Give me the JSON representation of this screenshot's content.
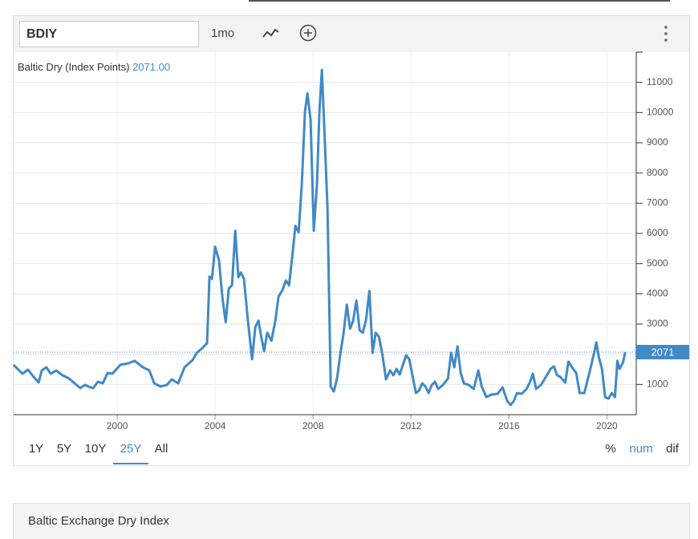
{
  "toolbar": {
    "symbol": "BDIY",
    "interval": "1mo"
  },
  "chart_data": {
    "type": "line",
    "label": "Baltic Dry (Index Points)",
    "legend_value": "2071.00",
    "color": "#4189c7",
    "x": [
      1995.77,
      1995.93,
      1996.13,
      1996.36,
      1996.59,
      1996.79,
      1996.92,
      1997.11,
      1997.28,
      1997.51,
      1997.77,
      1998.03,
      1998.3,
      1998.49,
      1998.69,
      1998.82,
      1999.02,
      1999.21,
      1999.41,
      1999.61,
      1999.8,
      2000.13,
      2000.46,
      2000.72,
      2001.05,
      2001.31,
      2001.51,
      2001.77,
      2002.03,
      2002.23,
      2002.49,
      2002.75,
      2003.08,
      2003.25,
      2003.48,
      2003.67,
      2003.77,
      2003.87,
      2004.0,
      2004.16,
      2004.3,
      2004.43,
      2004.56,
      2004.69,
      2004.82,
      2004.95,
      2005.05,
      2005.18,
      2005.34,
      2005.51,
      2005.64,
      2005.77,
      2005.87,
      2006.0,
      2006.13,
      2006.3,
      2006.46,
      2006.59,
      2006.75,
      2006.89,
      2007.02,
      2007.15,
      2007.28,
      2007.41,
      2007.54,
      2007.67,
      2007.77,
      2007.9,
      2008.03,
      2008.16,
      2008.26,
      2008.36,
      2008.46,
      2008.59,
      2008.72,
      2008.85,
      2008.98,
      2009.11,
      2009.25,
      2009.38,
      2009.51,
      2009.64,
      2009.77,
      2009.9,
      2010.03,
      2010.16,
      2010.3,
      2010.43,
      2010.56,
      2010.69,
      2010.82,
      2010.98,
      2011.15,
      2011.28,
      2011.41,
      2011.54,
      2011.67,
      2011.8,
      2011.93,
      2012.07,
      2012.2,
      2012.33,
      2012.46,
      2012.59,
      2012.72,
      2012.85,
      2012.98,
      2013.11,
      2013.31,
      2013.51,
      2013.64,
      2013.77,
      2013.9,
      2014.03,
      2014.16,
      2014.36,
      2014.56,
      2014.75,
      2014.89,
      2015.08,
      2015.28,
      2015.54,
      2015.74,
      2015.93,
      2016.07,
      2016.2,
      2016.33,
      2016.52,
      2016.72,
      2016.85,
      2016.98,
      2017.11,
      2017.31,
      2017.51,
      2017.7,
      2017.84,
      2017.97,
      2018.1,
      2018.3,
      2018.43,
      2018.62,
      2018.75,
      2018.89,
      2019.08,
      2019.28,
      2019.48,
      2019.57,
      2019.67,
      2019.8,
      2019.93,
      2020.07,
      2020.2,
      2020.33,
      2020.43,
      2020.52,
      2020.66,
      2020.75
    ],
    "values": [
      1649,
      1516,
      1356,
      1489,
      1250,
      1064,
      1463,
      1569,
      1356,
      1463,
      1303,
      1197,
      1011,
      878,
      984,
      931,
      878,
      1090,
      1037,
      1383,
      1356,
      1649,
      1702,
      1782,
      1569,
      1463,
      1037,
      931,
      984,
      1170,
      1037,
      1569,
      1809,
      2048,
      2207,
      2367,
      4574,
      4495,
      5559,
      5106,
      3856,
      3059,
      4176,
      4282,
      6090,
      4548,
      4707,
      4495,
      3112,
      1835,
      2899,
      3112,
      2633,
      2101,
      2713,
      2447,
      3112,
      3910,
      4122,
      4441,
      4282,
      5239,
      6250,
      6037,
      7633,
      10027,
      10638,
      9761,
      6090,
      7633,
      10027,
      11410,
      9495,
      6835,
      931,
      771,
      1197,
      1995,
      2713,
      3644,
      2846,
      3112,
      3777,
      2793,
      2713,
      3112,
      4096,
      2048,
      2713,
      2580,
      2048,
      1170,
      1463,
      1303,
      1516,
      1330,
      1649,
      1968,
      1835,
      1250,
      718,
      798,
      1037,
      931,
      718,
      984,
      1090,
      851,
      984,
      1197,
      2048,
      1569,
      2261,
      1383,
      1037,
      984,
      851,
      1463,
      931,
      585,
      665,
      691,
      904,
      452,
      319,
      452,
      718,
      691,
      851,
      1064,
      1356,
      851,
      984,
      1250,
      1516,
      1596,
      1303,
      1250,
      1064,
      1755,
      1516,
      1383,
      718,
      718,
      1356,
      2048,
      2394,
      1915,
      1516,
      585,
      532,
      718,
      585,
      1782,
      1516,
      1729,
      2071
    ],
    "xlim": [
      1995.77,
      2021.2
    ],
    "xticks": [
      2000,
      2004,
      2008,
      2012,
      2016,
      2020
    ],
    "ylim": [
      0,
      12000
    ],
    "yticks": [
      1000,
      2000,
      3000,
      4000,
      5000,
      6000,
      7000,
      8000,
      9000,
      10000,
      11000
    ],
    "grid": true,
    "current_value": {
      "value": 2071,
      "label": "2071"
    }
  },
  "range_buttons": [
    "1Y",
    "5Y",
    "10Y",
    "25Y",
    "All"
  ],
  "active_range": 3,
  "modes": [
    "%",
    "num",
    "dif"
  ],
  "active_mode": 1,
  "footer": {
    "title": "Baltic Exchange Dry Index"
  }
}
